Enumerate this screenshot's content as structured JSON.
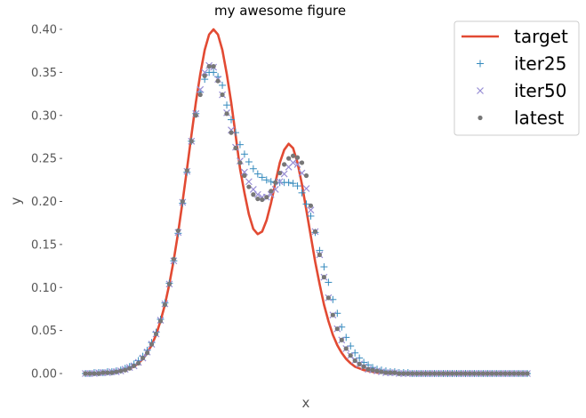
{
  "chart_data": {
    "type": "line",
    "title": "my awesome figure",
    "xlabel": "x",
    "ylabel": "y",
    "ylim": [
      0,
      0.4
    ],
    "yticks": [
      "0.00",
      "0.05",
      "0.10",
      "0.15",
      "0.20",
      "0.25",
      "0.30",
      "0.35",
      "0.40"
    ],
    "grid": false,
    "legend_position": "top-right",
    "series": [
      {
        "name": "target",
        "marker": "line",
        "color": "#E24A33",
        "x": [
          0,
          1,
          2,
          3,
          4,
          5,
          6,
          7,
          8,
          9,
          10,
          11,
          12,
          13,
          14,
          15,
          16,
          17,
          18,
          19,
          20,
          21,
          22,
          23,
          24,
          25,
          26,
          27,
          28,
          29,
          30,
          31,
          32,
          33,
          34,
          35,
          36,
          37,
          38,
          39,
          40,
          41,
          42,
          43,
          44,
          45,
          46,
          47,
          48,
          49,
          50,
          51,
          52,
          53,
          54,
          55,
          56,
          57,
          58,
          59,
          60,
          61,
          62,
          63,
          64,
          65,
          66,
          67,
          68,
          69,
          70,
          71,
          72,
          73,
          74,
          75,
          76,
          77,
          78,
          79,
          80,
          81,
          82,
          83,
          84,
          85,
          86,
          87,
          88,
          89,
          90,
          91,
          92,
          93,
          94,
          95,
          96,
          97,
          98,
          99,
          100
        ],
        "y": [
          0.0,
          0.0,
          0.0,
          0.0,
          0.001,
          0.001,
          0.001,
          0.002,
          0.003,
          0.004,
          0.006,
          0.008,
          0.012,
          0.017,
          0.024,
          0.033,
          0.045,
          0.061,
          0.08,
          0.104,
          0.132,
          0.164,
          0.2,
          0.238,
          0.277,
          0.315,
          0.348,
          0.376,
          0.394,
          0.4,
          0.394,
          0.376,
          0.348,
          0.315,
          0.277,
          0.238,
          0.21,
          0.185,
          0.168,
          0.162,
          0.165,
          0.178,
          0.198,
          0.222,
          0.245,
          0.26,
          0.267,
          0.262,
          0.245,
          0.22,
          0.19,
          0.16,
          0.13,
          0.104,
          0.08,
          0.061,
          0.045,
          0.033,
          0.024,
          0.017,
          0.012,
          0.008,
          0.006,
          0.004,
          0.003,
          0.002,
          0.001,
          0.001,
          0.001,
          0.0,
          0.0,
          0.0,
          0.0,
          0.0,
          0.0,
          0.0,
          0.0,
          0.0,
          0.0,
          0.0,
          0.0,
          0.0,
          0.0,
          0.0,
          0.0,
          0.0,
          0.0,
          0.0,
          0.0,
          0.0,
          0.0,
          0.0,
          0.0,
          0.0,
          0.0,
          0.0,
          0.0,
          0.0,
          0.0,
          0.0,
          0.0
        ]
      },
      {
        "name": "iter25",
        "marker": "plus",
        "color": "#348ABD",
        "x": [
          0,
          1,
          2,
          3,
          4,
          5,
          6,
          7,
          8,
          9,
          10,
          11,
          12,
          13,
          14,
          15,
          16,
          17,
          18,
          19,
          20,
          21,
          22,
          23,
          24,
          25,
          26,
          27,
          28,
          29,
          30,
          31,
          32,
          33,
          34,
          35,
          36,
          37,
          38,
          39,
          40,
          41,
          42,
          43,
          44,
          45,
          46,
          47,
          48,
          49,
          50,
          51,
          52,
          53,
          54,
          55,
          56,
          57,
          58,
          59,
          60,
          61,
          62,
          63,
          64,
          65,
          66,
          67,
          68,
          69,
          70,
          71,
          72,
          73,
          74,
          75,
          76,
          77,
          78,
          79,
          80,
          81,
          82,
          83,
          84,
          85,
          86,
          87,
          88,
          89,
          90,
          91,
          92,
          93,
          94,
          95,
          96,
          97,
          98,
          99,
          100
        ],
        "y": [
          0.0,
          0.0,
          0.001,
          0.001,
          0.001,
          0.002,
          0.002,
          0.003,
          0.004,
          0.006,
          0.008,
          0.011,
          0.015,
          0.02,
          0.027,
          0.036,
          0.048,
          0.063,
          0.082,
          0.105,
          0.131,
          0.163,
          0.198,
          0.234,
          0.27,
          0.302,
          0.327,
          0.342,
          0.35,
          0.35,
          0.345,
          0.335,
          0.312,
          0.295,
          0.28,
          0.266,
          0.255,
          0.246,
          0.238,
          0.232,
          0.228,
          0.225,
          0.223,
          0.222,
          0.222,
          0.222,
          0.222,
          0.221,
          0.218,
          0.21,
          0.197,
          0.183,
          0.164,
          0.143,
          0.124,
          0.106,
          0.086,
          0.07,
          0.054,
          0.042,
          0.032,
          0.024,
          0.018,
          0.013,
          0.01,
          0.007,
          0.005,
          0.004,
          0.003,
          0.002,
          0.002,
          0.001,
          0.001,
          0.001,
          0.0,
          0.0,
          0.0,
          0.0,
          0.0,
          0.0,
          0.0,
          0.0,
          0.0,
          0.0,
          0.0,
          0.0,
          0.0,
          0.0,
          0.0,
          0.0,
          0.0,
          0.0,
          0.0,
          0.0,
          0.0,
          0.0,
          0.0,
          0.0,
          0.0,
          0.0,
          0.0
        ]
      },
      {
        "name": "iter50",
        "marker": "x",
        "color": "#988ED5",
        "x": [
          0,
          1,
          2,
          3,
          4,
          5,
          6,
          7,
          8,
          9,
          10,
          11,
          12,
          13,
          14,
          15,
          16,
          17,
          18,
          19,
          20,
          21,
          22,
          23,
          24,
          25,
          26,
          27,
          28,
          29,
          30,
          31,
          32,
          33,
          34,
          35,
          36,
          37,
          38,
          39,
          40,
          41,
          42,
          43,
          44,
          45,
          46,
          47,
          48,
          49,
          50,
          51,
          52,
          53,
          54,
          55,
          56,
          57,
          58,
          59,
          60,
          61,
          62,
          63,
          64,
          65,
          66,
          67,
          68,
          69,
          70,
          71,
          72,
          73,
          74,
          75,
          76,
          77,
          78,
          79,
          80,
          81,
          82,
          83,
          84,
          85,
          86,
          87,
          88,
          89,
          90,
          91,
          92,
          93,
          94,
          95,
          96,
          97,
          98,
          99,
          100
        ],
        "y": [
          0.0,
          0.0,
          0.0,
          0.001,
          0.001,
          0.001,
          0.002,
          0.002,
          0.003,
          0.005,
          0.007,
          0.009,
          0.013,
          0.018,
          0.025,
          0.034,
          0.046,
          0.062,
          0.081,
          0.104,
          0.131,
          0.164,
          0.199,
          0.235,
          0.27,
          0.302,
          0.33,
          0.35,
          0.358,
          0.356,
          0.342,
          0.324,
          0.303,
          0.283,
          0.263,
          0.247,
          0.234,
          0.223,
          0.214,
          0.208,
          0.205,
          0.205,
          0.208,
          0.214,
          0.223,
          0.232,
          0.24,
          0.245,
          0.243,
          0.233,
          0.215,
          0.19,
          0.165,
          0.138,
          0.112,
          0.088,
          0.068,
          0.052,
          0.039,
          0.029,
          0.021,
          0.015,
          0.011,
          0.008,
          0.005,
          0.004,
          0.003,
          0.002,
          0.001,
          0.001,
          0.001,
          0.0,
          0.0,
          0.0,
          0.0,
          0.0,
          0.0,
          0.0,
          0.0,
          0.0,
          0.0,
          0.0,
          0.0,
          0.0,
          0.0,
          0.0,
          0.0,
          0.0,
          0.0,
          0.0,
          0.0,
          0.0,
          0.0,
          0.0,
          0.0,
          0.0,
          0.0,
          0.0,
          0.0,
          0.0,
          0.0
        ]
      },
      {
        "name": "latest",
        "marker": "dot",
        "color": "#777777",
        "x": [
          0,
          1,
          2,
          3,
          4,
          5,
          6,
          7,
          8,
          9,
          10,
          11,
          12,
          13,
          14,
          15,
          16,
          17,
          18,
          19,
          20,
          21,
          22,
          23,
          24,
          25,
          26,
          27,
          28,
          29,
          30,
          31,
          32,
          33,
          34,
          35,
          36,
          37,
          38,
          39,
          40,
          41,
          42,
          43,
          44,
          45,
          46,
          47,
          48,
          49,
          50,
          51,
          52,
          53,
          54,
          55,
          56,
          57,
          58,
          59,
          60,
          61,
          62,
          63,
          64,
          65,
          66,
          67,
          68,
          69,
          70,
          71,
          72,
          73,
          74,
          75,
          76,
          77,
          78,
          79,
          80,
          81,
          82,
          83,
          84,
          85,
          86,
          87,
          88,
          89,
          90,
          91,
          92,
          93,
          94,
          95,
          96,
          97,
          98,
          99,
          100
        ],
        "y": [
          0.0,
          0.0,
          0.0,
          0.0,
          0.001,
          0.001,
          0.001,
          0.002,
          0.003,
          0.004,
          0.006,
          0.009,
          0.012,
          0.018,
          0.024,
          0.034,
          0.046,
          0.061,
          0.08,
          0.104,
          0.133,
          0.166,
          0.2,
          0.236,
          0.27,
          0.3,
          0.324,
          0.346,
          0.357,
          0.357,
          0.34,
          0.324,
          0.302,
          0.28,
          0.262,
          0.245,
          0.23,
          0.217,
          0.208,
          0.203,
          0.202,
          0.205,
          0.212,
          0.222,
          0.233,
          0.243,
          0.25,
          0.253,
          0.251,
          0.245,
          0.23,
          0.195,
          0.165,
          0.138,
          0.112,
          0.088,
          0.068,
          0.052,
          0.039,
          0.029,
          0.021,
          0.015,
          0.011,
          0.008,
          0.005,
          0.004,
          0.003,
          0.002,
          0.001,
          0.001,
          0.001,
          0.0,
          0.0,
          0.0,
          0.0,
          0.0,
          0.0,
          0.0,
          0.0,
          0.0,
          0.0,
          0.0,
          0.0,
          0.0,
          0.0,
          0.0,
          0.0,
          0.0,
          0.0,
          0.0,
          0.0,
          0.0,
          0.0,
          0.0,
          0.0,
          0.0,
          0.0,
          0.0,
          0.0,
          0.0,
          0.0
        ]
      }
    ]
  }
}
